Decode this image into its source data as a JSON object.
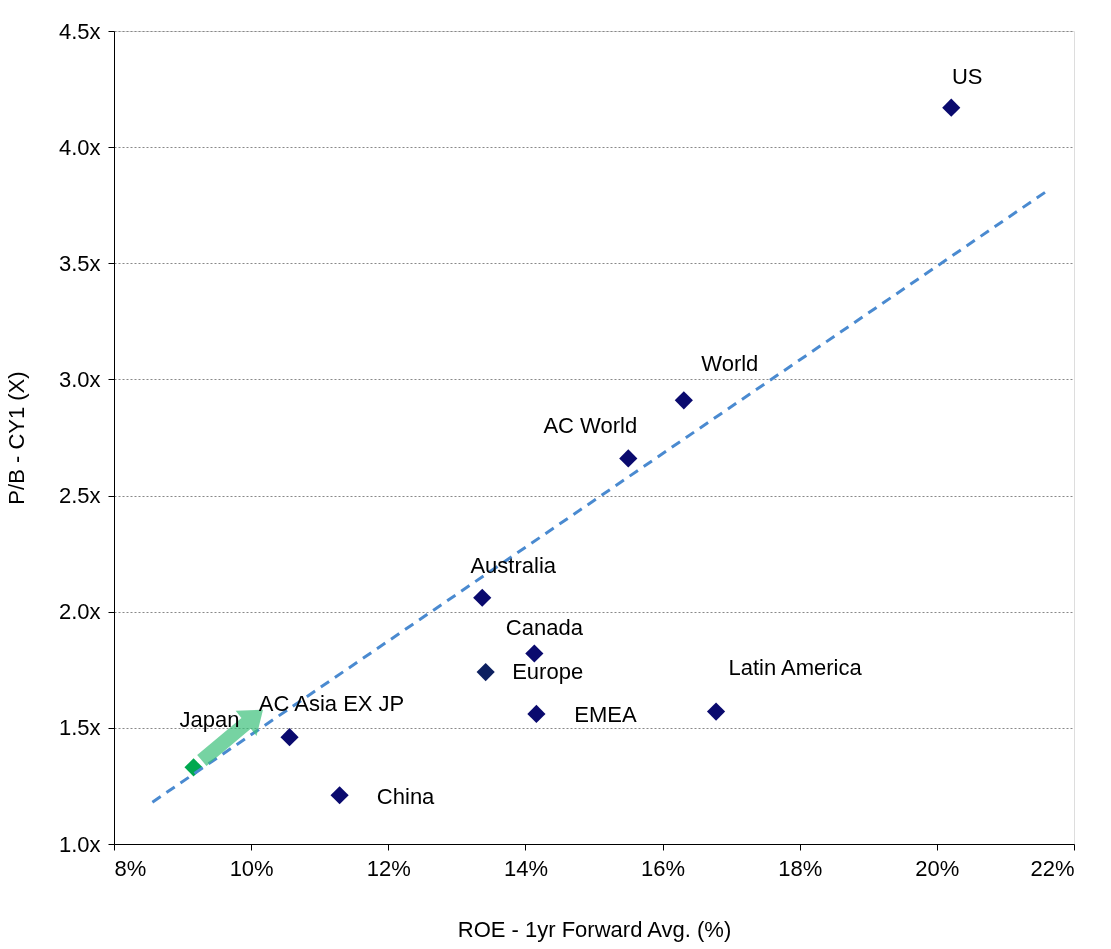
{
  "chart_data": {
    "type": "scatter",
    "xlabel": "ROE - 1yr Forward Avg. (%)",
    "ylabel": "P/B - CY1 (X)",
    "xlim": [
      8,
      22
    ],
    "xticks": [
      {
        "value": 8,
        "label": "8%"
      },
      {
        "value": 10,
        "label": "10%"
      },
      {
        "value": 12,
        "label": "12%"
      },
      {
        "value": 14,
        "label": "14%"
      },
      {
        "value": 16,
        "label": "16%"
      },
      {
        "value": 18,
        "label": "18%"
      },
      {
        "value": 20,
        "label": "20%"
      },
      {
        "value": 22,
        "label": "22%"
      }
    ],
    "ylim": [
      1.0,
      4.5
    ],
    "yticks": [
      {
        "value": 1.0,
        "label": "1.0x"
      },
      {
        "value": 1.5,
        "label": "1.5x"
      },
      {
        "value": 2.0,
        "label": "2.0x"
      },
      {
        "value": 2.5,
        "label": "2.5x"
      },
      {
        "value": 3.0,
        "label": "3.0x"
      },
      {
        "value": 3.5,
        "label": "3.5x"
      },
      {
        "value": 4.0,
        "label": "4.0x"
      },
      {
        "value": 4.5,
        "label": "4.5x"
      }
    ],
    "grid": "y",
    "marker": "diamond",
    "series": [
      {
        "type": "scatter",
        "colors": [
          "#0a0a6e",
          "#0a0a6e",
          "#0a0a6e",
          "#0a0a6e",
          "#0a0a6e",
          "#0d2060",
          "#0a0a6e",
          "#0a0a6e",
          "#0a0a6e",
          "#0a0a6e"
        ],
        "x": [
          20.21,
          16.31,
          15.5,
          13.37,
          14.13,
          13.42,
          16.78,
          14.16,
          10.56,
          11.29
        ],
        "values": [
          4.17,
          2.91,
          2.66,
          2.06,
          1.82,
          1.74,
          1.57,
          1.56,
          1.46,
          1.21
        ]
      },
      {
        "type": "scatter",
        "color": "#00a84f",
        "x": [
          9.16
        ],
        "values": [
          1.33
        ]
      },
      {
        "type": "line",
        "color": "#4a8ad0",
        "line_style": "dashed",
        "marker": "none",
        "x": [
          8.56,
          21.65
        ],
        "values": [
          1.18,
          3.82
        ]
      }
    ],
    "annotations": [
      {
        "text": "US",
        "x": 20.21,
        "y": 4.17
      },
      {
        "text": "World",
        "x": 16.31,
        "y": 2.91
      },
      {
        "text": "AC World",
        "x": 15.5,
        "y": 2.66
      },
      {
        "text": "Australia",
        "x": 13.37,
        "y": 2.06
      },
      {
        "text": "Canada",
        "x": 14.13,
        "y": 1.82
      },
      {
        "text": "Europe",
        "x": 13.42,
        "y": 1.74
      },
      {
        "text": "Latin America",
        "x": 16.78,
        "y": 1.57
      },
      {
        "text": "EMEA",
        "x": 14.16,
        "y": 1.56
      },
      {
        "text": "AC Asia EX JP",
        "x": 10.56,
        "y": 1.46
      },
      {
        "text": "China",
        "x": 11.29,
        "y": 1.21
      },
      {
        "text": "Japan",
        "x": 9.16,
        "y": 1.33
      }
    ]
  }
}
